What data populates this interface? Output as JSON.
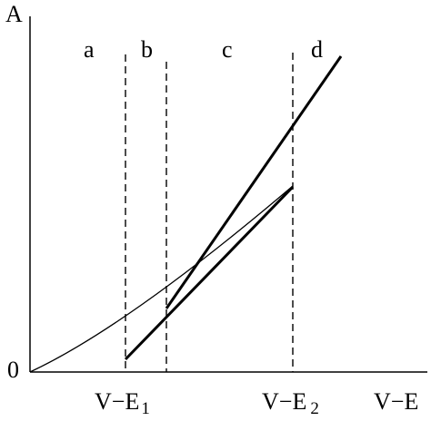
{
  "axes": {
    "y_label": "A",
    "x_label": "V−E",
    "origin_label": "0"
  },
  "ticks": {
    "e1": {
      "main": "V−E",
      "sub": "1"
    },
    "e2": {
      "main": "V−E",
      "sub": "2"
    }
  },
  "regions": [
    "a",
    "b",
    "c",
    "d"
  ],
  "colors": {
    "stroke": "#000000",
    "background": "#ffffff"
  }
}
